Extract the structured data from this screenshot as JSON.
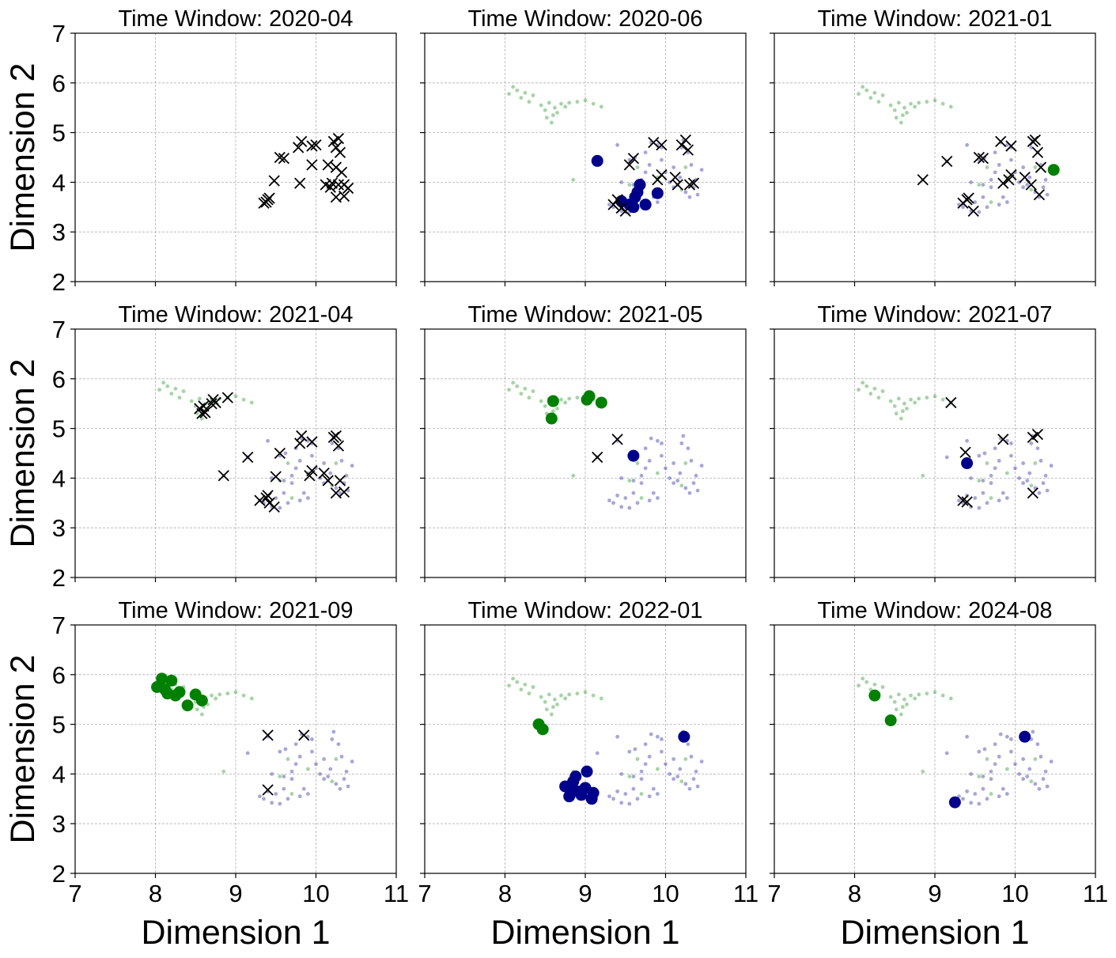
{
  "colors": {
    "cluster_a": "#008000",
    "cluster_b": "#00008b",
    "noise": "#000000",
    "grid": "#b0b0b0"
  },
  "chart_data": {
    "type": "scatter",
    "layout": "3x3 grid, shared axes",
    "xlabel": "Dimension 1",
    "ylabel": "Dimension 2",
    "xlim": [
      7,
      11
    ],
    "ylim": [
      2,
      7
    ],
    "xticks": [
      7,
      8,
      9,
      10,
      11
    ],
    "yticks": [
      2,
      3,
      4,
      5,
      6,
      7
    ],
    "grid": true,
    "background_points": {
      "green": [
        [
          8.05,
          5.78
        ],
        [
          8.1,
          5.92
        ],
        [
          8.15,
          5.85
        ],
        [
          8.2,
          5.7
        ],
        [
          8.25,
          5.8
        ],
        [
          8.3,
          5.62
        ],
        [
          8.35,
          5.75
        ],
        [
          8.45,
          5.55
        ],
        [
          8.5,
          5.45
        ],
        [
          8.52,
          5.3
        ],
        [
          8.55,
          5.6
        ],
        [
          8.58,
          5.2
        ],
        [
          8.6,
          5.35
        ],
        [
          8.62,
          5.5
        ],
        [
          8.65,
          5.4
        ],
        [
          8.7,
          5.58
        ],
        [
          8.75,
          5.52
        ],
        [
          8.8,
          5.6
        ],
        [
          8.9,
          5.62
        ],
        [
          9.0,
          5.65
        ],
        [
          9.1,
          5.58
        ],
        [
          9.2,
          5.52
        ],
        [
          8.85,
          4.05
        ],
        [
          9.55,
          3.95
        ],
        [
          9.65,
          4.3
        ],
        [
          9.7,
          3.6
        ],
        [
          9.9,
          4.1
        ],
        [
          10.2,
          3.85
        ],
        [
          10.25,
          4.3
        ]
      ],
      "blue": [
        [
          9.3,
          3.55
        ],
        [
          9.35,
          3.5
        ],
        [
          9.4,
          3.65
        ],
        [
          9.45,
          3.42
        ],
        [
          9.5,
          3.6
        ],
        [
          9.55,
          3.4
        ],
        [
          9.6,
          3.7
        ],
        [
          9.65,
          3.5
        ],
        [
          9.7,
          3.9
        ],
        [
          9.8,
          3.55
        ],
        [
          9.85,
          3.7
        ],
        [
          9.9,
          3.6
        ],
        [
          9.45,
          4.0
        ],
        [
          9.55,
          4.45
        ],
        [
          9.62,
          4.5
        ],
        [
          9.7,
          4.05
        ],
        [
          9.75,
          4.2
        ],
        [
          9.8,
          4.35
        ],
        [
          9.82,
          4.8
        ],
        [
          9.9,
          4.75
        ],
        [
          9.95,
          4.7
        ],
        [
          10.0,
          4.2
        ],
        [
          10.05,
          4.0
        ],
        [
          10.1,
          4.3
        ],
        [
          10.15,
          3.95
        ],
        [
          10.18,
          4.1
        ],
        [
          10.2,
          4.7
        ],
        [
          10.22,
          4.85
        ],
        [
          10.25,
          3.8
        ],
        [
          10.28,
          4.6
        ],
        [
          10.3,
          3.7
        ],
        [
          10.32,
          4.35
        ],
        [
          10.35,
          3.9
        ],
        [
          10.38,
          4.05
        ],
        [
          10.4,
          3.75
        ],
        [
          10.45,
          4.25
        ],
        [
          9.4,
          4.75
        ],
        [
          9.15,
          4.42
        ],
        [
          9.95,
          4.45
        ],
        [
          10.1,
          3.9
        ],
        [
          9.6,
          3.95
        ],
        [
          9.75,
          4.6
        ]
      ]
    },
    "panels": [
      {
        "title": "Time Window: 2020-04",
        "show_background": false,
        "green": [],
        "blue": [],
        "x_marks": [
          [
            9.35,
            3.58
          ],
          [
            9.38,
            3.6
          ],
          [
            9.4,
            3.65
          ],
          [
            9.42,
            3.68
          ],
          [
            9.48,
            4.03
          ],
          [
            9.55,
            4.5
          ],
          [
            9.6,
            4.48
          ],
          [
            9.78,
            4.7
          ],
          [
            9.8,
            3.98
          ],
          [
            9.82,
            4.82
          ],
          [
            9.95,
            4.35
          ],
          [
            9.95,
            4.73
          ],
          [
            10.0,
            4.75
          ],
          [
            10.15,
            4.35
          ],
          [
            10.12,
            3.95
          ],
          [
            10.18,
            3.9
          ],
          [
            10.2,
            3.98
          ],
          [
            10.22,
            4.82
          ],
          [
            10.25,
            4.7
          ],
          [
            10.25,
            3.7
          ],
          [
            10.28,
            3.95
          ],
          [
            10.28,
            4.88
          ],
          [
            10.3,
            4.6
          ],
          [
            10.32,
            4.2
          ],
          [
            10.35,
            3.72
          ],
          [
            10.35,
            3.95
          ],
          [
            10.4,
            3.88
          ],
          [
            10.25,
            4.3
          ]
        ]
      },
      {
        "title": "Time Window: 2020-06",
        "show_background": true,
        "green": [],
        "blue": [
          [
            9.15,
            4.43
          ],
          [
            9.45,
            3.62
          ],
          [
            9.55,
            3.55
          ],
          [
            9.6,
            3.5
          ],
          [
            9.65,
            3.8
          ],
          [
            9.68,
            3.95
          ],
          [
            9.62,
            3.7
          ],
          [
            9.75,
            3.55
          ],
          [
            9.9,
            3.78
          ]
        ],
        "x_marks": [
          [
            9.35,
            3.55
          ],
          [
            9.4,
            3.65
          ],
          [
            9.45,
            3.48
          ],
          [
            9.5,
            3.42
          ],
          [
            9.55,
            4.35
          ],
          [
            9.6,
            4.48
          ],
          [
            9.85,
            4.8
          ],
          [
            9.95,
            4.75
          ],
          [
            9.9,
            4.05
          ],
          [
            9.95,
            4.15
          ],
          [
            10.12,
            4.1
          ],
          [
            10.15,
            3.95
          ],
          [
            10.2,
            4.75
          ],
          [
            10.25,
            4.85
          ],
          [
            10.28,
            4.65
          ],
          [
            10.3,
            3.95
          ],
          [
            10.35,
            3.98
          ]
        ]
      },
      {
        "title": "Time Window: 2021-01",
        "show_background": true,
        "green": [
          [
            10.48,
            4.25
          ]
        ],
        "blue": [],
        "x_marks": [
          [
            8.85,
            4.05
          ],
          [
            9.15,
            4.42
          ],
          [
            9.35,
            3.58
          ],
          [
            9.4,
            3.65
          ],
          [
            9.42,
            3.68
          ],
          [
            9.48,
            3.42
          ],
          [
            9.55,
            4.5
          ],
          [
            9.6,
            4.48
          ],
          [
            9.82,
            4.82
          ],
          [
            9.95,
            4.73
          ],
          [
            9.85,
            3.98
          ],
          [
            9.92,
            4.05
          ],
          [
            9.95,
            4.15
          ],
          [
            10.12,
            4.1
          ],
          [
            10.2,
            3.95
          ],
          [
            10.22,
            4.82
          ],
          [
            10.25,
            4.85
          ],
          [
            10.28,
            4.6
          ],
          [
            10.3,
            3.75
          ],
          [
            10.32,
            4.3
          ]
        ]
      },
      {
        "title": "Time Window: 2021-04",
        "show_background": true,
        "green": [],
        "blue": [],
        "x_marks": [
          [
            8.55,
            5.4
          ],
          [
            8.58,
            5.3
          ],
          [
            8.6,
            5.45
          ],
          [
            8.62,
            5.32
          ],
          [
            8.7,
            5.5
          ],
          [
            8.72,
            5.58
          ],
          [
            8.75,
            5.52
          ],
          [
            8.9,
            5.62
          ],
          [
            8.85,
            4.05
          ],
          [
            9.15,
            4.42
          ],
          [
            9.3,
            3.55
          ],
          [
            9.38,
            3.6
          ],
          [
            9.4,
            3.65
          ],
          [
            9.42,
            3.5
          ],
          [
            9.48,
            3.42
          ],
          [
            9.5,
            4.03
          ],
          [
            9.55,
            4.5
          ],
          [
            9.8,
            4.7
          ],
          [
            9.82,
            4.85
          ],
          [
            9.95,
            4.73
          ],
          [
            9.92,
            4.05
          ],
          [
            9.95,
            4.15
          ],
          [
            10.1,
            4.1
          ],
          [
            10.15,
            3.95
          ],
          [
            10.22,
            4.82
          ],
          [
            10.25,
            4.85
          ],
          [
            10.28,
            4.65
          ],
          [
            10.25,
            3.7
          ],
          [
            10.3,
            3.95
          ],
          [
            10.35,
            3.72
          ]
        ]
      },
      {
        "title": "Time Window: 2021-05",
        "show_background": true,
        "green": [
          [
            8.58,
            5.2
          ],
          [
            8.6,
            5.55
          ],
          [
            9.02,
            5.58
          ],
          [
            9.05,
            5.65
          ],
          [
            9.2,
            5.52
          ]
        ],
        "blue": [
          [
            9.6,
            4.45
          ]
        ],
        "x_marks": [
          [
            9.15,
            4.42
          ],
          [
            9.4,
            4.78
          ]
        ]
      },
      {
        "title": "Time Window: 2021-07",
        "show_background": true,
        "green": [],
        "blue": [
          [
            9.4,
            4.3
          ]
        ],
        "x_marks": [
          [
            9.2,
            5.52
          ],
          [
            9.35,
            3.55
          ],
          [
            9.4,
            3.52
          ],
          [
            9.38,
            4.52
          ],
          [
            9.85,
            4.78
          ],
          [
            10.22,
            4.82
          ],
          [
            10.28,
            4.88
          ],
          [
            10.22,
            3.7
          ]
        ]
      },
      {
        "title": "Time Window: 2021-09",
        "show_background": true,
        "green": [
          [
            8.02,
            5.75
          ],
          [
            8.08,
            5.92
          ],
          [
            8.12,
            5.7
          ],
          [
            8.15,
            5.62
          ],
          [
            8.2,
            5.88
          ],
          [
            8.25,
            5.58
          ],
          [
            8.3,
            5.65
          ],
          [
            8.4,
            5.38
          ],
          [
            8.5,
            5.6
          ],
          [
            8.58,
            5.48
          ]
        ],
        "blue": [],
        "x_marks": [
          [
            9.4,
            4.78
          ],
          [
            9.85,
            4.78
          ],
          [
            9.4,
            3.68
          ]
        ]
      },
      {
        "title": "Time Window: 2022-01",
        "show_background": true,
        "green": [
          [
            8.42,
            5.0
          ],
          [
            8.47,
            4.9
          ]
        ],
        "blue": [
          [
            8.75,
            3.75
          ],
          [
            8.8,
            3.55
          ],
          [
            8.82,
            3.7
          ],
          [
            8.85,
            3.85
          ],
          [
            8.88,
            3.95
          ],
          [
            8.9,
            3.65
          ],
          [
            8.95,
            3.58
          ],
          [
            9.0,
            3.72
          ],
          [
            9.02,
            4.05
          ],
          [
            9.08,
            3.5
          ],
          [
            9.1,
            3.62
          ],
          [
            10.23,
            4.75
          ]
        ],
        "x_marks": []
      },
      {
        "title": "Time Window: 2024-08",
        "show_background": true,
        "green": [
          [
            8.25,
            5.58
          ],
          [
            8.45,
            5.08
          ]
        ],
        "blue": [
          [
            9.25,
            3.43
          ],
          [
            10.12,
            4.75
          ]
        ],
        "x_marks": []
      }
    ]
  }
}
